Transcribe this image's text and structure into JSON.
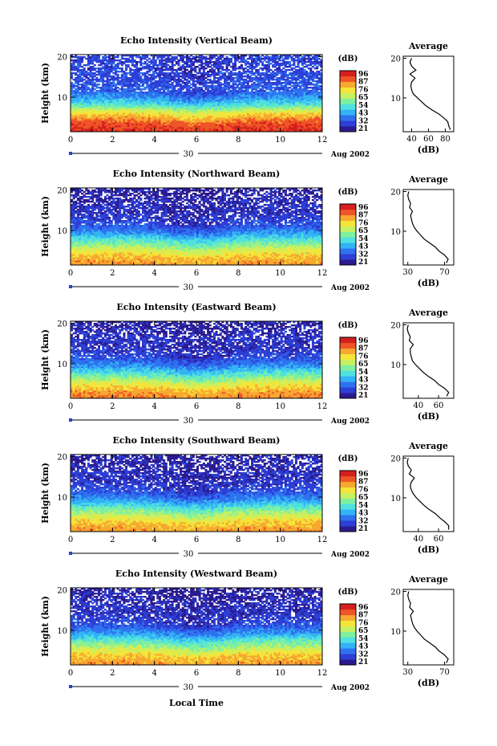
{
  "figure": {
    "xlabel": "Local Time",
    "colorbar_unit": "(dB)",
    "avg_title": "Average",
    "avg_xlabel": "(dB)",
    "date_label": "30",
    "month_label": "Aug 2002"
  },
  "colorscale": {
    "ticks": [
      "96",
      "87",
      "76",
      "65",
      "54",
      "43",
      "32",
      "21"
    ],
    "colors": [
      "#2b1b8f",
      "#2d3fd6",
      "#2f72f0",
      "#33b3f5",
      "#4fe0e0",
      "#7ef0a0",
      "#c8f060",
      "#f5e53a",
      "#f7a830",
      "#ef5527",
      "#d41f20"
    ]
  },
  "chart_data": [
    {
      "type": "heatmap",
      "title": "Echo Intensity (Vertical Beam)",
      "xlabel": "Local Time",
      "ylabel": "Height (km)",
      "xlim": [
        0,
        12
      ],
      "ylim": [
        1.5,
        20.5
      ],
      "xticks": [
        0,
        2,
        4,
        6,
        8,
        10,
        12
      ],
      "yticks": [
        10,
        20
      ],
      "color_range_db": [
        21,
        96
      ],
      "profile_db": [
        [
          2,
          90
        ],
        [
          3,
          88
        ],
        [
          4,
          86
        ],
        [
          5,
          80
        ],
        [
          6,
          74
        ],
        [
          7,
          65
        ],
        [
          8,
          55
        ],
        [
          9,
          48
        ],
        [
          10,
          42
        ],
        [
          11,
          38
        ],
        [
          12,
          36
        ],
        [
          13,
          34
        ],
        [
          14,
          33
        ],
        [
          15,
          32
        ],
        [
          16,
          33
        ],
        [
          17,
          31
        ],
        [
          18,
          32
        ],
        [
          19,
          31
        ],
        [
          20,
          32
        ]
      ],
      "average": {
        "title": "Average",
        "xlabel": "(dB)",
        "xlim": [
          30,
          90
        ],
        "xticks": [
          40,
          60,
          80
        ],
        "height_km": [
          2,
          3,
          4,
          5,
          6,
          7,
          8,
          9,
          10,
          11,
          12,
          13,
          14,
          15,
          16,
          17,
          18,
          19,
          20
        ],
        "echo_db": [
          86,
          84,
          83,
          78,
          72,
          64,
          57,
          52,
          47,
          42,
          40,
          39,
          40,
          44,
          38,
          45,
          40,
          38,
          40
        ]
      }
    },
    {
      "type": "heatmap",
      "title": "Echo Intensity (Northward Beam)",
      "xlabel": "Local Time",
      "ylabel": "Height (km)",
      "xlim": [
        0,
        12
      ],
      "ylim": [
        1.5,
        20.5
      ],
      "xticks": [
        0,
        2,
        4,
        6,
        8,
        10,
        12
      ],
      "yticks": [
        10,
        20
      ],
      "color_range_db": [
        21,
        96
      ],
      "profile_db": [
        [
          2,
          80
        ],
        [
          3,
          78
        ],
        [
          4,
          75
        ],
        [
          5,
          70
        ],
        [
          6,
          64
        ],
        [
          7,
          58
        ],
        [
          8,
          52
        ],
        [
          9,
          45
        ],
        [
          10,
          40
        ],
        [
          11,
          36
        ],
        [
          12,
          33
        ],
        [
          13,
          31
        ],
        [
          14,
          30
        ],
        [
          15,
          29
        ],
        [
          16,
          30
        ],
        [
          17,
          28
        ],
        [
          18,
          28
        ],
        [
          19,
          27
        ],
        [
          20,
          27
        ]
      ],
      "average": {
        "title": "Average",
        "xlabel": "(dB)",
        "xlim": [
          25,
          80
        ],
        "xticks": [
          30,
          70
        ],
        "height_km": [
          2,
          3,
          4,
          5,
          6,
          7,
          8,
          9,
          10,
          11,
          12,
          13,
          14,
          15,
          16,
          17,
          18,
          19,
          20
        ],
        "echo_db": [
          72,
          74,
          70,
          64,
          60,
          54,
          48,
          44,
          40,
          37,
          35,
          34,
          33,
          35,
          32,
          33,
          31,
          30,
          31
        ]
      }
    },
    {
      "type": "heatmap",
      "title": "Echo Intensity (Eastward Beam)",
      "xlabel": "Local Time",
      "ylabel": "Height (km)",
      "xlim": [
        0,
        12
      ],
      "ylim": [
        1.5,
        20.5
      ],
      "xticks": [
        0,
        2,
        4,
        6,
        8,
        10,
        12
      ],
      "yticks": [
        10,
        20
      ],
      "color_range_db": [
        21,
        96
      ],
      "profile_db": [
        [
          2,
          82
        ],
        [
          3,
          80
        ],
        [
          4,
          76
        ],
        [
          5,
          71
        ],
        [
          6,
          65
        ],
        [
          7,
          58
        ],
        [
          8,
          52
        ],
        [
          9,
          45
        ],
        [
          10,
          40
        ],
        [
          11,
          36
        ],
        [
          12,
          33
        ],
        [
          13,
          31
        ],
        [
          14,
          30
        ],
        [
          15,
          29
        ],
        [
          16,
          30
        ],
        [
          17,
          28
        ],
        [
          18,
          28
        ],
        [
          19,
          27
        ],
        [
          20,
          27
        ]
      ],
      "average": {
        "title": "Average",
        "xlabel": "(dB)",
        "xlim": [
          25,
          75
        ],
        "xticks": [
          40,
          60
        ],
        "height_km": [
          2,
          3,
          4,
          5,
          6,
          7,
          8,
          9,
          10,
          11,
          12,
          13,
          14,
          15,
          16,
          17,
          18,
          19,
          20
        ],
        "echo_db": [
          68,
          70,
          66,
          60,
          56,
          50,
          45,
          41,
          37,
          34,
          33,
          32,
          32,
          35,
          31,
          32,
          30,
          29,
          30
        ]
      }
    },
    {
      "type": "heatmap",
      "title": "Echo Intensity (Southward Beam)",
      "xlabel": "Local Time",
      "ylabel": "Height (km)",
      "xlim": [
        0,
        12
      ],
      "ylim": [
        1.5,
        20.5
      ],
      "xticks": [
        0,
        2,
        4,
        6,
        8,
        10,
        12
      ],
      "yticks": [
        10,
        20
      ],
      "color_range_db": [
        21,
        96
      ],
      "profile_db": [
        [
          2,
          80
        ],
        [
          3,
          78
        ],
        [
          4,
          75
        ],
        [
          5,
          70
        ],
        [
          6,
          64
        ],
        [
          7,
          58
        ],
        [
          8,
          52
        ],
        [
          9,
          45
        ],
        [
          10,
          40
        ],
        [
          11,
          36
        ],
        [
          12,
          33
        ],
        [
          13,
          31
        ],
        [
          14,
          30
        ],
        [
          15,
          29
        ],
        [
          16,
          30
        ],
        [
          17,
          28
        ],
        [
          18,
          28
        ],
        [
          19,
          27
        ],
        [
          20,
          27
        ]
      ],
      "average": {
        "title": "Average",
        "xlabel": "(dB)",
        "xlim": [
          25,
          75
        ],
        "xticks": [
          40,
          60
        ],
        "height_km": [
          2,
          3,
          4,
          5,
          6,
          7,
          8,
          9,
          10,
          11,
          12,
          13,
          14,
          15,
          16,
          17,
          18,
          19,
          20
        ],
        "echo_db": [
          70,
          70,
          66,
          61,
          57,
          51,
          46,
          42,
          38,
          35,
          33,
          32,
          33,
          36,
          31,
          33,
          30,
          29,
          30
        ]
      }
    },
    {
      "type": "heatmap",
      "title": "Echo Intensity (Westward Beam)",
      "xlabel": "Local Time",
      "ylabel": "Height (km)",
      "xlim": [
        0,
        12
      ],
      "ylim": [
        1.5,
        20.5
      ],
      "xticks": [
        0,
        2,
        4,
        6,
        8,
        10,
        12
      ],
      "yticks": [
        10,
        20
      ],
      "color_range_db": [
        21,
        96
      ],
      "profile_db": [
        [
          2,
          80
        ],
        [
          3,
          78
        ],
        [
          4,
          75
        ],
        [
          5,
          70
        ],
        [
          6,
          64
        ],
        [
          7,
          58
        ],
        [
          8,
          52
        ],
        [
          9,
          45
        ],
        [
          10,
          40
        ],
        [
          11,
          36
        ],
        [
          12,
          33
        ],
        [
          13,
          31
        ],
        [
          14,
          30
        ],
        [
          15,
          29
        ],
        [
          16,
          30
        ],
        [
          17,
          28
        ],
        [
          18,
          28
        ],
        [
          19,
          27
        ],
        [
          20,
          27
        ]
      ],
      "average": {
        "title": "Average",
        "xlabel": "(dB)",
        "xlim": [
          25,
          80
        ],
        "xticks": [
          30,
          70
        ],
        "height_km": [
          2,
          3,
          4,
          5,
          6,
          7,
          8,
          9,
          10,
          11,
          12,
          13,
          14,
          15,
          16,
          17,
          18,
          19,
          20
        ],
        "echo_db": [
          72,
          74,
          70,
          64,
          60,
          54,
          48,
          44,
          40,
          37,
          35,
          34,
          33,
          36,
          32,
          33,
          31,
          30,
          31
        ]
      }
    }
  ]
}
